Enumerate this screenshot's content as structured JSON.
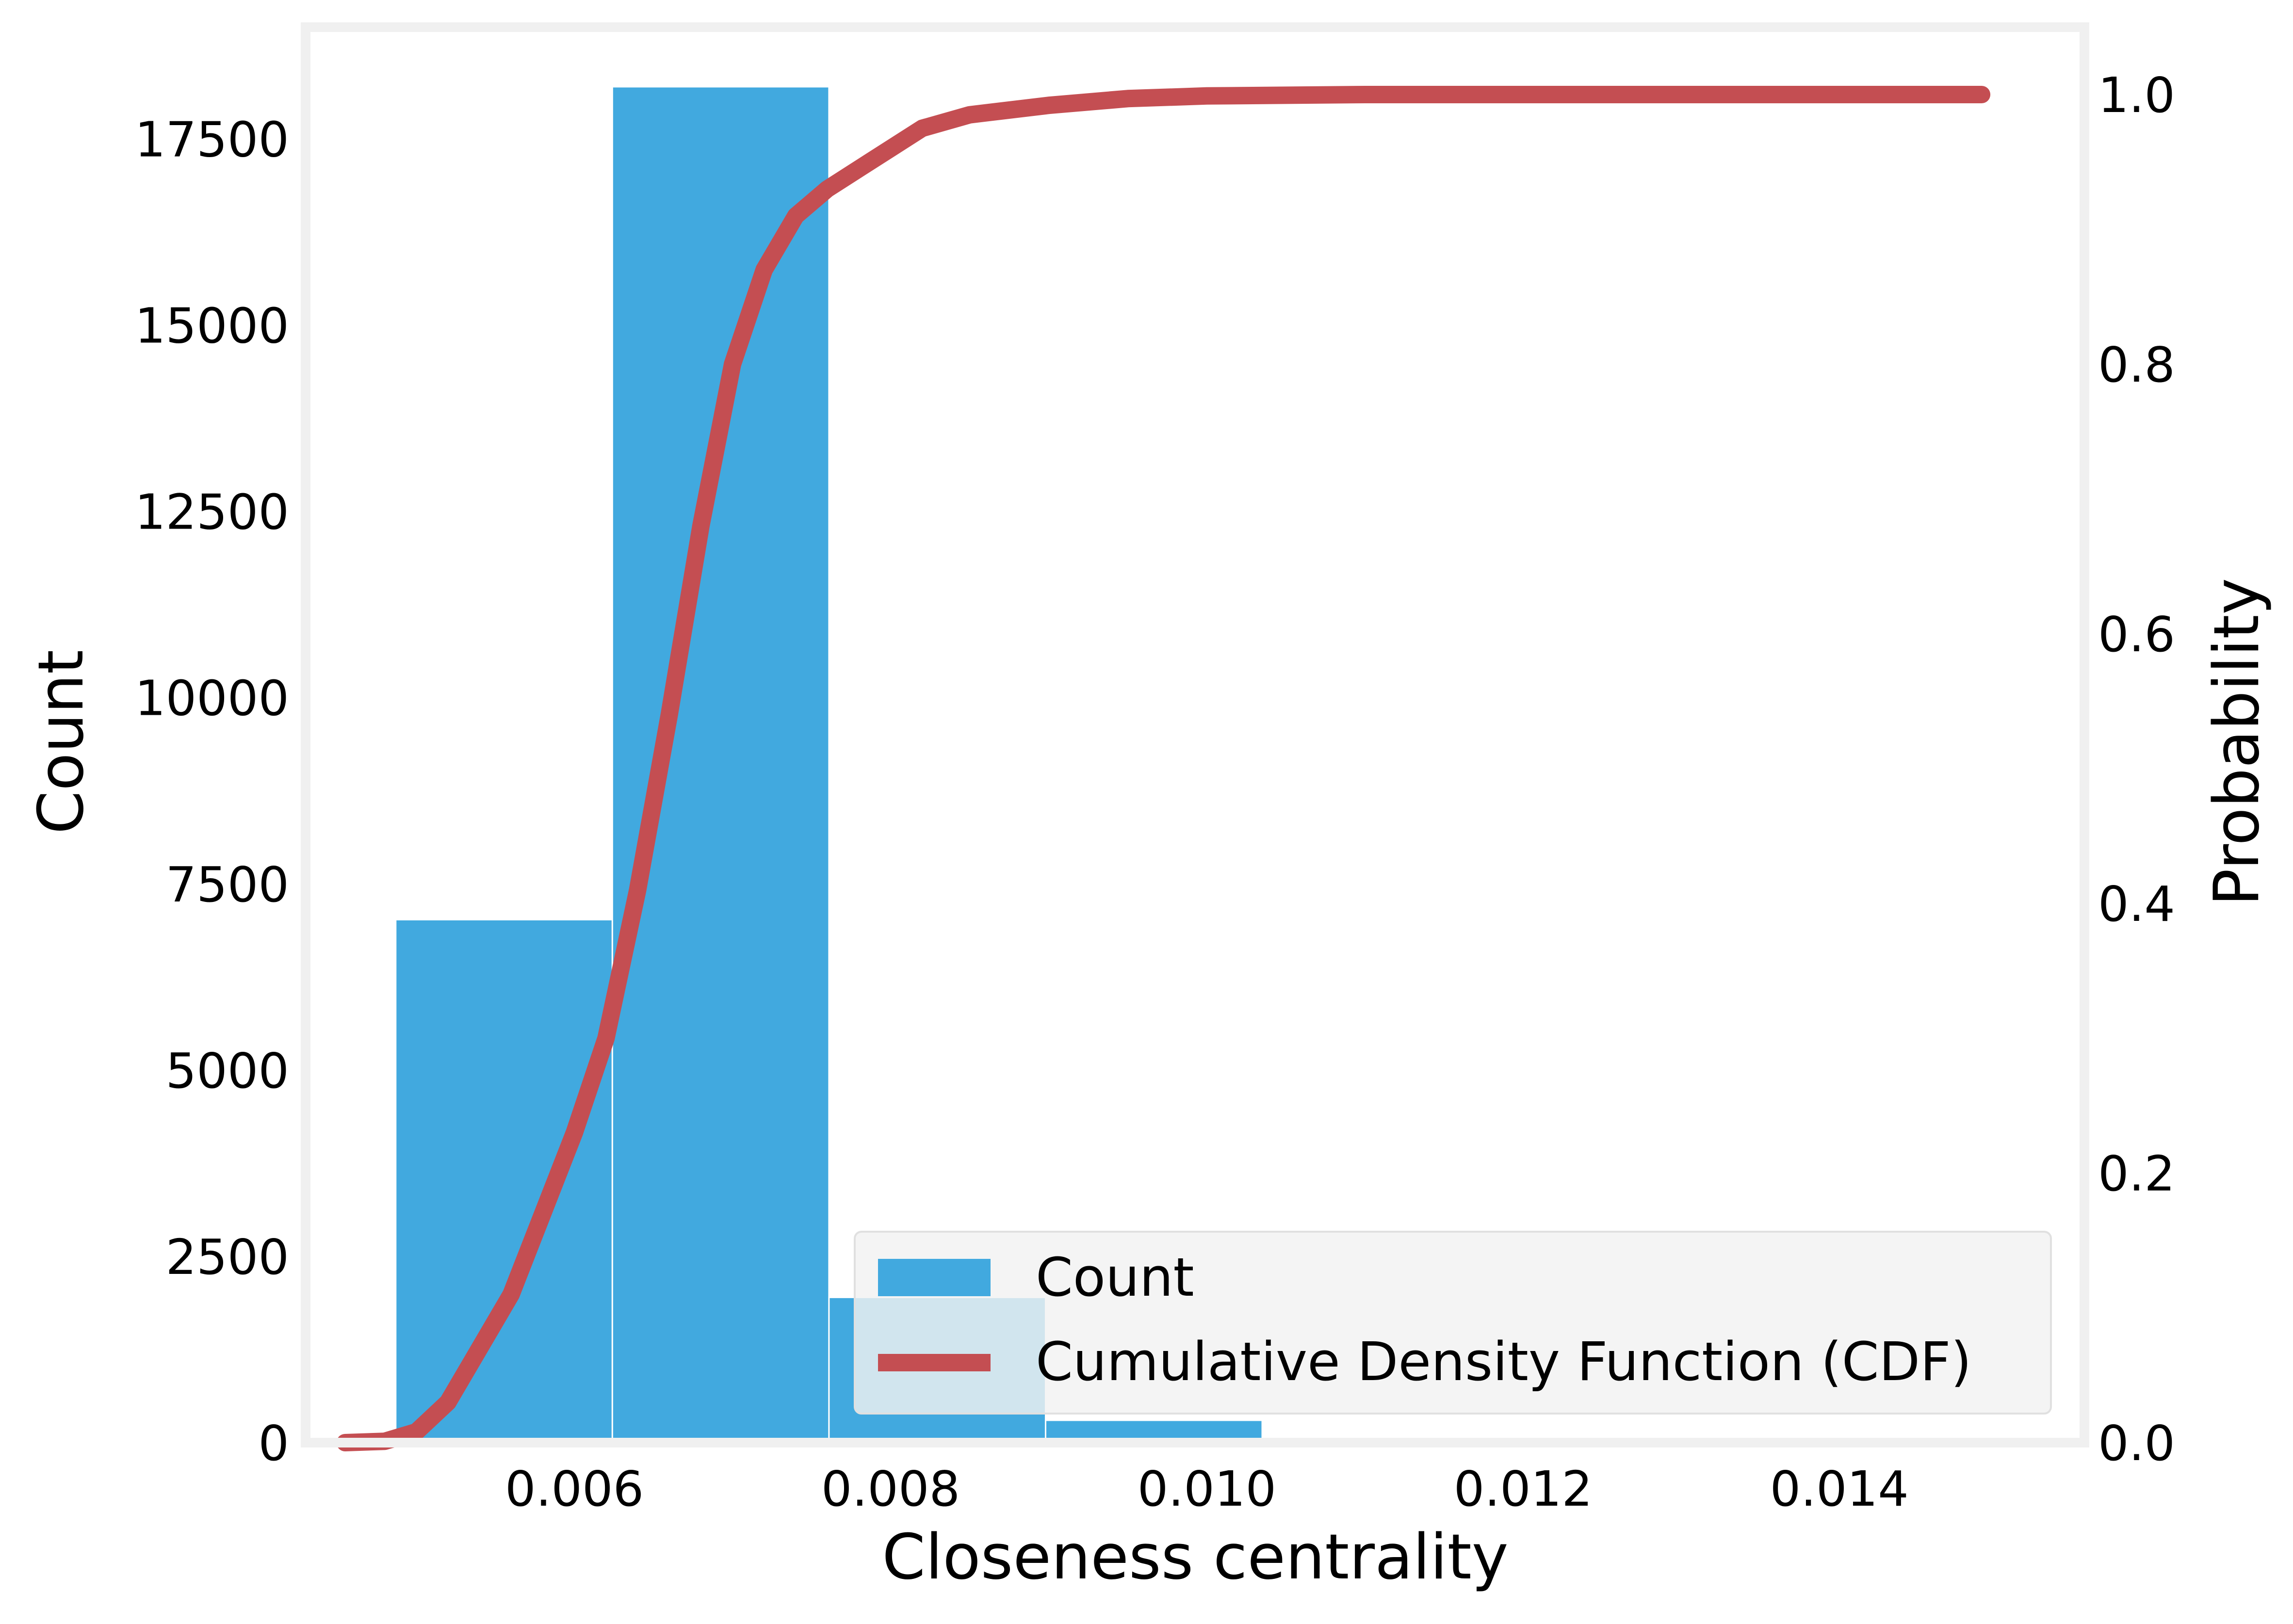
{
  "chart_data": {
    "type": "bar",
    "xlabel": "Closeness centrality",
    "ylabel": "Count",
    "y2label": "Probability",
    "xlim": [
      0.0043,
      0.01555
    ],
    "ylim": [
      0,
      19000
    ],
    "y2lim": [
      0,
      1.05
    ],
    "xticks": [
      "0.006",
      "0.008",
      "0.010",
      "0.012",
      "0.014"
    ],
    "xtick_values": [
      0.006,
      0.008,
      0.01,
      0.012,
      0.014
    ],
    "yticks": [
      "0",
      "2500",
      "5000",
      "7500",
      "10000",
      "12500",
      "15000",
      "17500"
    ],
    "ytick_values": [
      0,
      2500,
      5000,
      7500,
      10000,
      12500,
      15000,
      17500
    ],
    "y2ticks": [
      "0.0",
      "0.2",
      "0.4",
      "0.6",
      "0.8",
      "1.0"
    ],
    "y2tick_values": [
      0,
      0.2,
      0.4,
      0.6,
      0.8,
      1.0
    ],
    "grid": false,
    "legend_position": "lower-right",
    "series": [
      {
        "name": "Count",
        "type": "bar",
        "color": "#41a9df",
        "bins": [
          {
            "x0": 0.00487,
            "x1": 0.00624,
            "value": 7020
          },
          {
            "x0": 0.00624,
            "x1": 0.00761,
            "value": 18200
          },
          {
            "x0": 0.00761,
            "x1": 0.00898,
            "value": 1950
          },
          {
            "x0": 0.00898,
            "x1": 0.01035,
            "value": 300
          }
        ]
      },
      {
        "name": "Cumulative Density Function (CDF)",
        "type": "line",
        "axis": "right",
        "color": "#c44e52",
        "points": [
          [
            0.00455,
            0.0
          ],
          [
            0.0048,
            0.001
          ],
          [
            0.005,
            0.008
          ],
          [
            0.0052,
            0.03
          ],
          [
            0.0054,
            0.07
          ],
          [
            0.0056,
            0.11
          ],
          [
            0.0058,
            0.17
          ],
          [
            0.006,
            0.23
          ],
          [
            0.0062,
            0.3
          ],
          [
            0.0064,
            0.41
          ],
          [
            0.0066,
            0.54
          ],
          [
            0.0068,
            0.68
          ],
          [
            0.007,
            0.8
          ],
          [
            0.0072,
            0.87
          ],
          [
            0.0074,
            0.91
          ],
          [
            0.0076,
            0.93
          ],
          [
            0.0078,
            0.945
          ],
          [
            0.008,
            0.96
          ],
          [
            0.0082,
            0.975
          ],
          [
            0.0085,
            0.985
          ],
          [
            0.009,
            0.992
          ],
          [
            0.0095,
            0.997
          ],
          [
            0.01,
            0.999
          ],
          [
            0.011,
            1.0
          ],
          [
            0.0149,
            1.0
          ]
        ]
      }
    ]
  }
}
